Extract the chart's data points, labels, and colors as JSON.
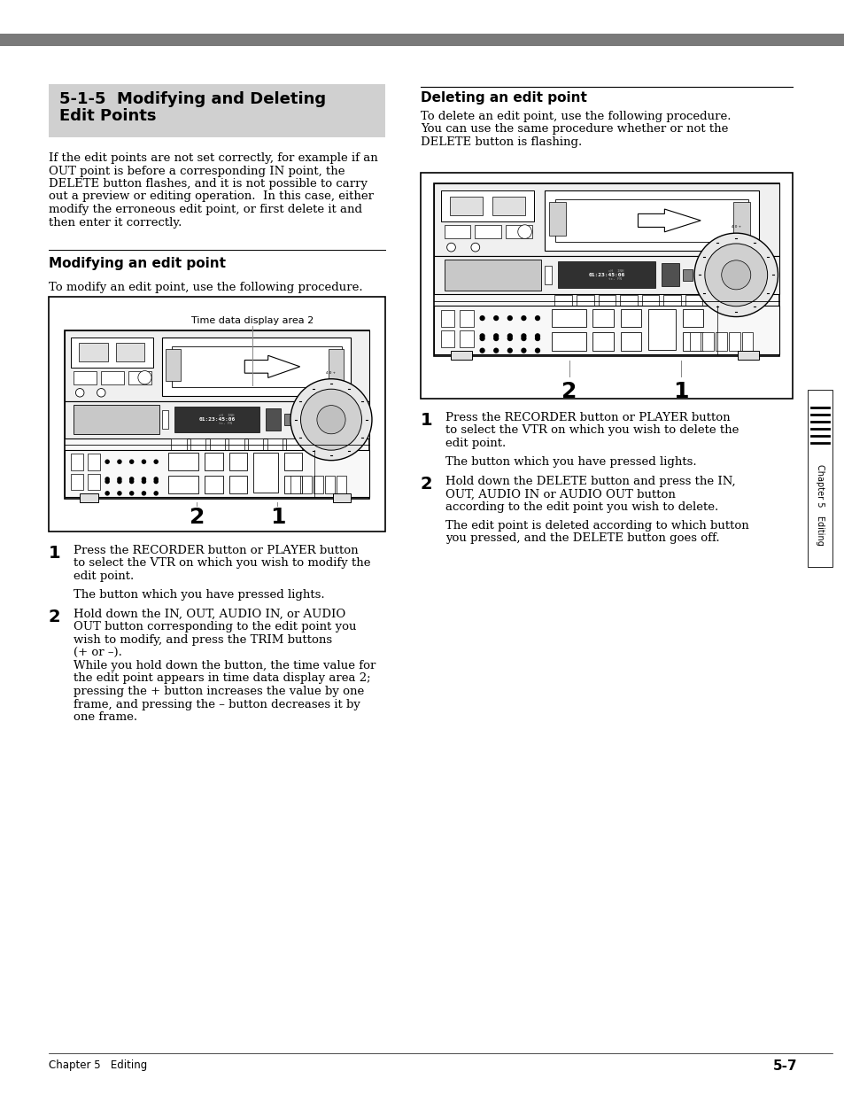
{
  "page_bg": "#ffffff",
  "top_bar_color": "#7a7a7a",
  "section_header_bg": "#d0d0d0",
  "section_header_line1": "5-1-5  Modifying and Deleting",
  "section_header_line2": "Edit Points",
  "body_intro": [
    "If the edit points are not set correctly, for example if an",
    "OUT point is before a corresponding IN point, the",
    "DELETE button flashes, and it is not possible to carry",
    "out a preview or editing operation.  In this case, either",
    "modify the erroneous edit point, or first delete it and",
    "then enter it correctly."
  ],
  "subhead_modify": "Modifying an edit point",
  "subhead_delete": "Deleting an edit point",
  "modify_intro": "To modify an edit point, use the following procedure.",
  "delete_intro": [
    "To delete an edit point, use the following procedure.",
    "You can use the same procedure whether or not the",
    "DELETE button is flashing."
  ],
  "diagram_label": "Time data display area 2",
  "step1_modify_lines": [
    "Press the RECORDER button or PLAYER button",
    "to select the VTR on which you wish to modify the",
    "edit point."
  ],
  "step1_modify_b": "The button which you have pressed lights.",
  "step2_modify_lines": [
    "Hold down the IN, OUT, AUDIO IN, or AUDIO",
    "OUT button corresponding to the edit point you",
    "wish to modify, and press the TRIM buttons",
    "(+ or –).",
    "While you hold down the button, the time value for",
    "the edit point appears in time data display area 2;",
    "pressing the + button increases the value by one",
    "frame, and pressing the – button decreases it by",
    "one frame."
  ],
  "step1_delete_lines": [
    "Press the RECORDER button or PLAYER button",
    "to select the VTR on which you wish to delete the",
    "edit point."
  ],
  "step1_delete_b": "The button which you have pressed lights.",
  "step2_delete_lines": [
    "Hold down the DELETE button and press the IN,",
    "OUT, AUDIO IN or AUDIO OUT button",
    "according to the edit point you wish to delete."
  ],
  "step2_delete_b_lines": [
    "The edit point is deleted according to which button",
    "you pressed, and the DELETE button goes off."
  ],
  "footer_left": "Chapter 5   Editing",
  "footer_right": "5-7",
  "sidebar_text": "Chapter 5   Editing"
}
